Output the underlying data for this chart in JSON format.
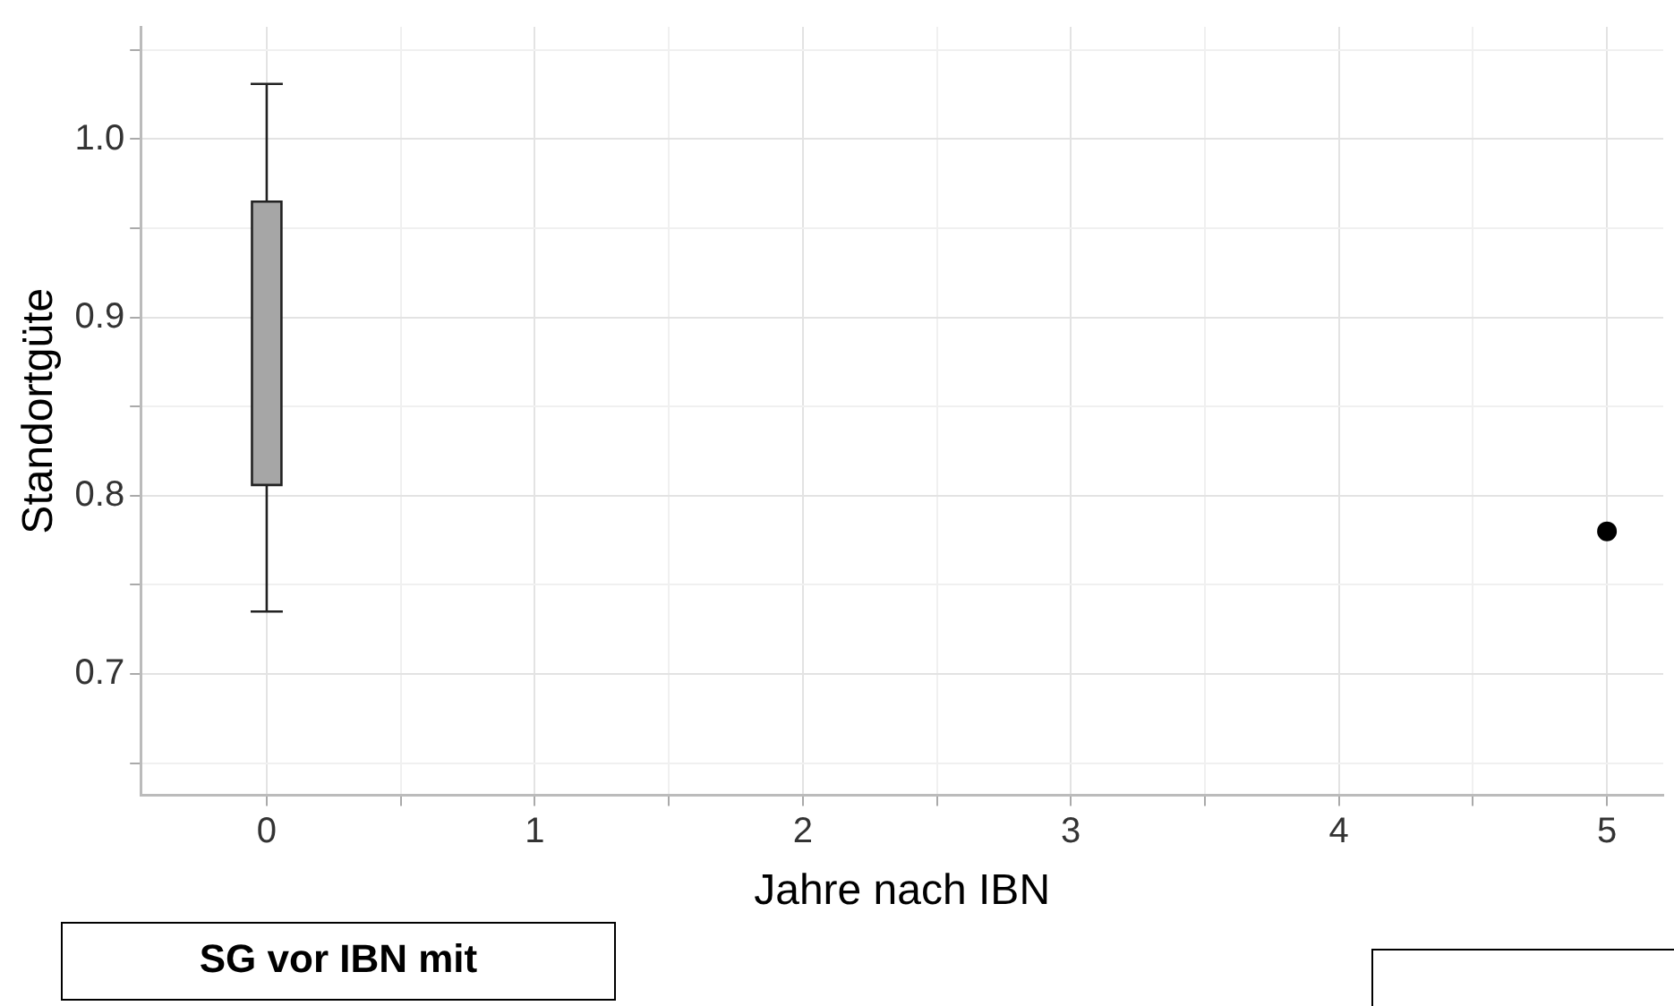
{
  "chart_data": {
    "type": "box",
    "xlabel": "Jahre nach IBN",
    "ylabel": "Standortgüte",
    "xlim": [
      -0.47,
      5.21
    ],
    "xticks": [
      0,
      {
        "value": 0.5,
        "label": null
      },
      1,
      {
        "value": 1.5,
        "label": null
      },
      2,
      {
        "value": 2.5,
        "label": null
      },
      3,
      {
        "value": 3.5,
        "label": null
      },
      4,
      {
        "value": 4.5,
        "label": null
      },
      5
    ],
    "ylim": [
      0.632,
      1.063
    ],
    "yticks": [
      {
        "value": 0.65,
        "label": null
      },
      0.7,
      {
        "value": 0.75,
        "label": null
      },
      0.8,
      {
        "value": 0.85,
        "label": null
      },
      0.9,
      {
        "value": 0.95,
        "label": null
      },
      {
        "value": 1,
        "label": "1.0"
      },
      {
        "value": 1.05,
        "label": null
      }
    ],
    "grid": true,
    "series": [
      {
        "type": "box",
        "color": "#a6a6a6",
        "x": [
          0
        ],
        "boxes": [
          {
            "low": 0.735,
            "q1": 0.806,
            "q3": 0.965,
            "high": 1.031
          }
        ]
      },
      {
        "type": "scatter",
        "color": "#000000",
        "x": [
          5
        ],
        "values": [
          0.78
        ],
        "marker": "circle"
      }
    ],
    "annotations": [
      "SG vor IBN mit"
    ]
  }
}
